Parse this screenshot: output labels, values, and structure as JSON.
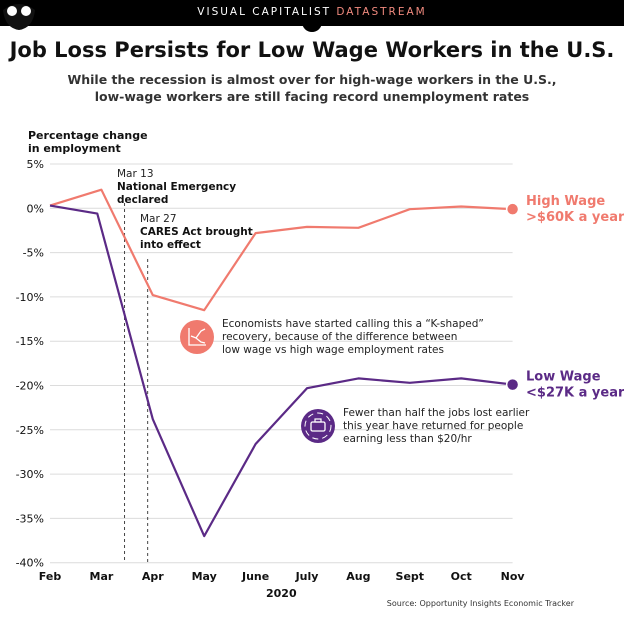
{
  "header": {
    "brand_prefix": "VISUAL CAPITALIST",
    "brand_suffix": "DATASTREAM",
    "title": "Job Loss Persists for Low Wage Workers in the U.S.",
    "subtitle_line1": "While the recession is almost over for high-wage workers in the U.S.,",
    "subtitle_line2": "low-wage workers are still facing record unemployment rates"
  },
  "chart_data": {
    "type": "line",
    "ylabel": "Percentage change in employment",
    "ylabel_line1": "Percentage change",
    "ylabel_line2": "in employment",
    "xlabel": "2020",
    "ylim": [
      -40,
      5
    ],
    "yticks": [
      5,
      0,
      -5,
      -10,
      -15,
      -20,
      -25,
      -30,
      -35,
      -40
    ],
    "ytick_labels": [
      "5%",
      "0%",
      "-5%",
      "-10%",
      "-15%",
      "-20%",
      "-25%",
      "-30%",
      "-35%",
      "-40%"
    ],
    "categories": [
      "Feb",
      "Mar",
      "Apr",
      "May",
      "June",
      "July",
      "Aug",
      "Sept",
      "Oct",
      "Nov"
    ],
    "series": [
      {
        "name": "High Wage >$60K a year",
        "label_line1": "High Wage",
        "label_line2": ">$60K a year",
        "color": "#f07a6e",
        "x": [
          0,
          1,
          2,
          3,
          4,
          5,
          6,
          7,
          8,
          9
        ],
        "y": [
          0.3,
          2.1,
          -9.8,
          -11.5,
          -2.8,
          -2.1,
          -2.2,
          -0.1,
          0.2,
          -0.1
        ]
      },
      {
        "name": "Low Wage <$27K a year",
        "label_line1": "Low Wage",
        "label_line2": "<$27K a year",
        "color": "#5b2a86",
        "x": [
          0,
          0.92,
          2,
          3,
          4,
          5,
          6,
          7,
          8,
          9
        ],
        "y": [
          0.3,
          -0.6,
          -23.8,
          -37.0,
          -26.6,
          -20.3,
          -19.2,
          -19.7,
          -19.2,
          -19.9
        ]
      }
    ],
    "markers": [
      {
        "x": 1.45,
        "date": "Mar 13",
        "label_line1": "National Emergency",
        "label_line2": "declared"
      },
      {
        "x": 1.9,
        "date": "Mar 27",
        "label_line1": "CARES Act brought",
        "label_line2": "into effect"
      }
    ],
    "annotations": [
      {
        "icon": "k-shaped-chart-icon",
        "color": "#f07a6e",
        "lines": [
          "Economists have started calling this a “K-shaped”",
          "recovery, because of the difference between",
          "low wage vs high wage employment rates"
        ]
      },
      {
        "icon": "briefcase-people-icon",
        "color": "#5b2a86",
        "lines": [
          "Fewer than half the jobs lost earlier",
          "this year have returned for people",
          "earning less than $20/hr"
        ]
      }
    ],
    "source": "Source: Opportunity Insights Economic Tracker"
  }
}
